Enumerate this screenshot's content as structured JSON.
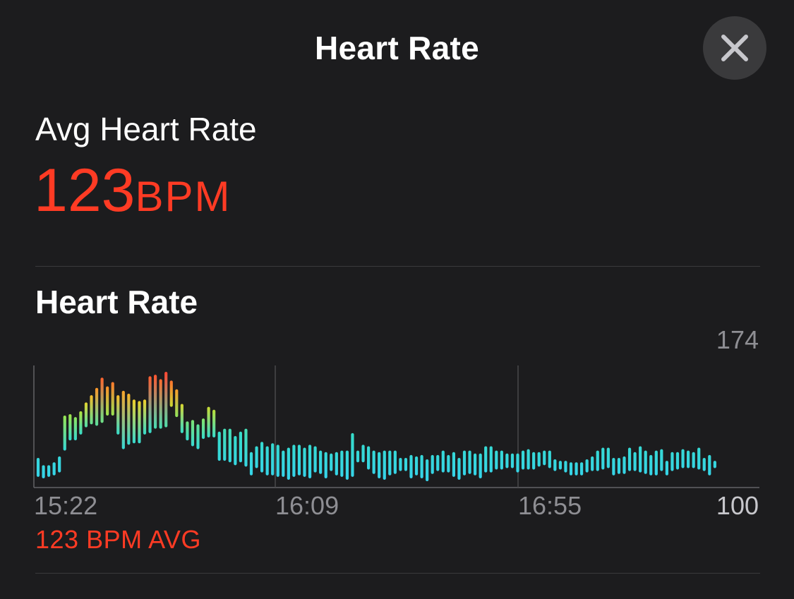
{
  "header": {
    "title": "Heart Rate",
    "close_icon": "close-icon"
  },
  "summary": {
    "label": "Avg Heart Rate",
    "value": "123",
    "unit": "BPM"
  },
  "section": {
    "title": "Heart Rate",
    "avg_caption": "123 BPM AVG"
  },
  "colors": {
    "background": "#1c1c1e",
    "accent": "#ff3b24",
    "low": "#36d3ea"
  },
  "chart_data": {
    "type": "bar",
    "x_ticks": [
      "15:22",
      "16:09",
      "16:55"
    ],
    "y_ticks": [
      "174",
      "100"
    ],
    "ylim": [
      100,
      174
    ],
    "series": [
      {
        "ranges": [
          [
            102,
            115
          ],
          [
            101,
            110
          ],
          [
            102,
            110
          ],
          [
            103,
            112
          ],
          [
            105,
            116
          ],
          [
            120,
            144
          ],
          [
            127,
            145
          ],
          [
            127,
            143
          ],
          [
            131,
            147
          ],
          [
            136,
            153
          ],
          [
            138,
            158
          ],
          [
            137,
            163
          ],
          [
            139,
            170
          ],
          [
            144,
            164
          ],
          [
            144,
            167
          ],
          [
            131,
            158
          ],
          [
            121,
            161
          ],
          [
            124,
            159
          ],
          [
            125,
            155
          ],
          [
            125,
            154
          ],
          [
            131,
            155
          ],
          [
            132,
            171
          ],
          [
            135,
            172
          ],
          [
            135,
            169
          ],
          [
            136,
            174
          ],
          [
            150,
            168
          ],
          [
            143,
            162
          ],
          [
            132,
            152
          ],
          [
            127,
            140
          ],
          [
            123,
            141
          ],
          [
            121,
            138
          ],
          [
            128,
            142
          ],
          [
            129,
            150
          ],
          [
            129,
            148
          ],
          [
            113,
            133
          ],
          [
            113,
            135
          ],
          [
            112,
            135
          ],
          [
            110,
            130
          ],
          [
            112,
            133
          ],
          [
            109,
            135
          ],
          [
            103,
            119
          ],
          [
            108,
            123
          ],
          [
            105,
            126
          ],
          [
            103,
            123
          ],
          [
            103,
            125
          ],
          [
            102,
            124
          ],
          [
            102,
            120
          ],
          [
            100,
            122
          ],
          [
            102,
            124
          ],
          [
            103,
            124
          ],
          [
            102,
            122
          ],
          [
            101,
            124
          ],
          [
            105,
            123
          ],
          [
            104,
            120
          ],
          [
            101,
            119
          ],
          [
            106,
            118
          ],
          [
            103,
            119
          ],
          [
            102,
            120
          ],
          [
            100,
            120
          ],
          [
            102,
            132
          ],
          [
            112,
            120
          ],
          [
            112,
            124
          ],
          [
            107,
            123
          ],
          [
            104,
            120
          ],
          [
            101,
            119
          ],
          [
            100,
            120
          ],
          [
            103,
            120
          ],
          [
            104,
            120
          ],
          [
            106,
            115
          ],
          [
            106,
            115
          ],
          [
            101,
            117
          ],
          [
            103,
            116
          ],
          [
            101,
            117
          ],
          [
            99,
            114
          ],
          [
            104,
            117
          ],
          [
            106,
            117
          ],
          [
            105,
            120
          ],
          [
            105,
            117
          ],
          [
            102,
            119
          ],
          [
            100,
            115
          ],
          [
            103,
            120
          ],
          [
            104,
            120
          ],
          [
            103,
            118
          ],
          [
            101,
            118
          ],
          [
            105,
            123
          ],
          [
            105,
            123
          ],
          [
            107,
            120
          ],
          [
            107,
            120
          ],
          [
            108,
            118
          ],
          [
            108,
            118
          ],
          [
            105,
            118
          ],
          [
            107,
            120
          ],
          [
            107,
            121
          ],
          [
            107,
            119
          ],
          [
            109,
            119
          ],
          [
            110,
            120
          ],
          [
            108,
            120
          ],
          [
            106,
            114
          ],
          [
            107,
            113
          ],
          [
            105,
            113
          ],
          [
            103,
            112
          ],
          [
            103,
            112
          ],
          [
            103,
            112
          ],
          [
            105,
            114
          ],
          [
            106,
            116
          ],
          [
            106,
            120
          ],
          [
            107,
            122
          ],
          [
            108,
            122
          ],
          [
            103,
            115
          ],
          [
            104,
            115
          ],
          [
            104,
            116
          ],
          [
            106,
            122
          ],
          [
            106,
            119
          ],
          [
            105,
            123
          ],
          [
            104,
            120
          ],
          [
            103,
            117
          ],
          [
            103,
            120
          ],
          [
            106,
            121
          ],
          [
            103,
            113
          ],
          [
            106,
            119
          ],
          [
            107,
            119
          ],
          [
            108,
            121
          ],
          [
            108,
            120
          ],
          [
            108,
            119
          ],
          [
            107,
            122
          ],
          [
            106,
            115
          ],
          [
            103,
            117
          ],
          [
            108,
            113
          ]
        ]
      }
    ]
  }
}
